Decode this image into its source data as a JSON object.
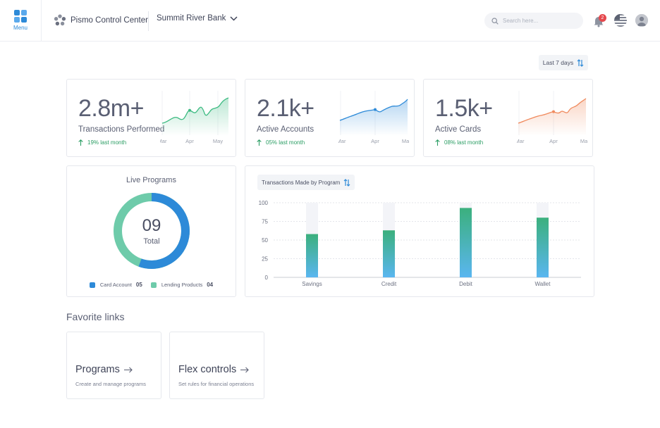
{
  "topbar": {
    "menu_label": "Menu",
    "brand_name": "Pismo Control Center",
    "bank_name": "Summit River Bank",
    "search_placeholder": "Search here...",
    "notification_count": "2"
  },
  "date_filter": {
    "label": "Last 7 days"
  },
  "stats": [
    {
      "value": "2.8m+",
      "label": "Transactions Performed",
      "trend": "19% last month",
      "color": "#3dbb82",
      "months": [
        "Mar",
        "Apr",
        "May"
      ]
    },
    {
      "value": "2.1k+",
      "label": "Active Accounts",
      "trend": "05% last month",
      "color": "#2d8ad8",
      "months": [
        "Mar",
        "Apr",
        "May"
      ]
    },
    {
      "value": "1.5k+",
      "label": "Active Cards",
      "trend": "08% last month",
      "color": "#f08a5d",
      "months": [
        "Mar",
        "Apr",
        "May"
      ]
    }
  ],
  "live_programs": {
    "title": "Live Programs",
    "total": "09",
    "total_label": "Total",
    "legend": [
      {
        "label": "Card Account",
        "count": "05",
        "color": "#2d8ad8"
      },
      {
        "label": "Lending Products",
        "count": "04",
        "color": "#6ecbaa"
      }
    ]
  },
  "chart_data": {
    "type": "bar",
    "title": "Transactions Made by Program",
    "categories": [
      "Savings",
      "Credit",
      "Debit",
      "Wallet"
    ],
    "values": [
      58,
      63,
      93,
      80
    ],
    "ylim": [
      0,
      100
    ],
    "yticks": [
      0,
      25,
      50,
      75,
      100
    ],
    "grid": true
  },
  "favorites": {
    "title": "Favorite links",
    "links": [
      {
        "name": "Programs",
        "desc": "Create and manage programs"
      },
      {
        "name": "Flex controls",
        "desc": "Set rules for financial operations"
      }
    ]
  }
}
